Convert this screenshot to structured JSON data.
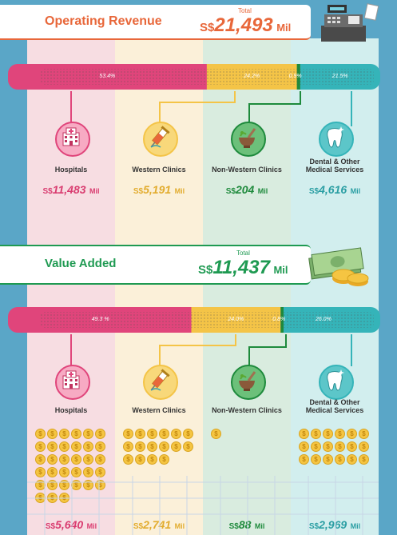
{
  "colors": {
    "hospitals": "#e0457b",
    "western": "#f4c447",
    "nonwestern": "#1e8a3c",
    "dental": "#35b4b9",
    "revenue_title": "#e8673a",
    "value_title": "#1f9a52",
    "background": "#5aa6c7"
  },
  "operating_revenue": {
    "title": "Operating Revenue",
    "total_label": "Total",
    "currency": "S$",
    "total": "21,493",
    "unit": "Mil",
    "shares": [
      53.4,
      24.2,
      0.9,
      21.5
    ],
    "share_labels": [
      "53.4%",
      "24.2%",
      "0.9%",
      "21.5%"
    ],
    "categories": [
      {
        "label": "Hospitals",
        "currency": "S$",
        "value": "11,483",
        "unit": "Mil",
        "icon": "hospital-icon"
      },
      {
        "label": "Western Clinics",
        "currency": "S$",
        "value": "5,191",
        "unit": "Mil",
        "icon": "syringe-icon"
      },
      {
        "label": "Non-Western Clinics",
        "currency": "S$",
        "value": "204",
        "unit": "Mil",
        "icon": "mortar-pestle-icon"
      },
      {
        "label": "Dental & Other Medical Services",
        "currency": "S$",
        "value": "4,616",
        "unit": "Mil",
        "icon": "tooth-icon"
      }
    ]
  },
  "value_added": {
    "title": "Value Added",
    "total_label": "Total",
    "currency": "S$",
    "total": "11,437",
    "unit": "Mil",
    "shares": [
      49.3,
      24.0,
      0.8,
      26.0
    ],
    "share_labels": [
      "49.3 %",
      "24.0%",
      "0.8%",
      "26.0%"
    ],
    "categories": [
      {
        "label": "Hospitals",
        "currency": "S$",
        "value": "5,640",
        "unit": "Mil",
        "icon": "hospital-icon",
        "coins": 33
      },
      {
        "label": "Western Clinics",
        "currency": "S$",
        "value": "2,741",
        "unit": "Mil",
        "icon": "syringe-icon",
        "coins": 16
      },
      {
        "label": "Non-Western Clinics",
        "currency": "S$",
        "value": "88",
        "unit": "Mil",
        "icon": "mortar-pestle-icon",
        "coins": 1
      },
      {
        "label": "Dental & Other Medical Services",
        "currency": "S$",
        "value": "2,969",
        "unit": "Mil",
        "icon": "tooth-icon",
        "coins": 18
      }
    ]
  }
}
